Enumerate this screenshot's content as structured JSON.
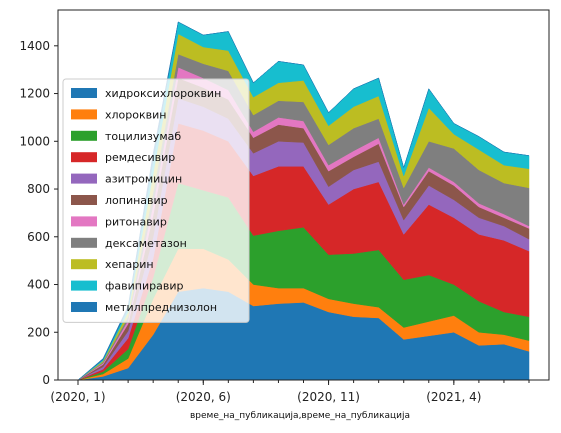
{
  "chart_data": {
    "type": "area",
    "stacked": true,
    "xlabel": "време_на_публикација,време_на_публикација",
    "ylabel": "",
    "ylim": [
      0,
      1550
    ],
    "yticks": [
      0,
      200,
      400,
      600,
      800,
      1000,
      1200,
      1400
    ],
    "xticks": [
      {
        "label": "(2020, 1)",
        "index": 0
      },
      {
        "label": "(2020, 6)",
        "index": 5
      },
      {
        "label": "(2020, 11)",
        "index": 10
      },
      {
        "label": "(2021, 4)",
        "index": 15
      }
    ],
    "x": [
      "2020-01",
      "2020-02",
      "2020-03",
      "2020-04",
      "2020-05",
      "2020-06",
      "2020-07",
      "2020-08",
      "2020-09",
      "2020-10",
      "2020-11",
      "2020-12",
      "2021-01",
      "2021-02",
      "2021-03",
      "2021-04",
      "2021-05",
      "2021-06",
      "2021-07"
    ],
    "legend_position": "left",
    "grid": false,
    "series": [
      {
        "name": "хидроксихлороквин",
        "color": "#1f77b4",
        "values": [
          0,
          15,
          50,
          190,
          370,
          385,
          370,
          310,
          320,
          325,
          285,
          265,
          260,
          170,
          185,
          200,
          145,
          150,
          120
        ]
      },
      {
        "name": "хлороквин",
        "color": "#ff7f0e",
        "values": [
          0,
          10,
          40,
          150,
          180,
          165,
          135,
          90,
          65,
          60,
          55,
          55,
          45,
          50,
          60,
          70,
          55,
          40,
          45
        ]
      },
      {
        "name": "тоцилизумаб",
        "color": "#2ca02c",
        "values": [
          0,
          10,
          40,
          90,
          275,
          245,
          260,
          205,
          240,
          255,
          185,
          210,
          240,
          200,
          195,
          130,
          130,
          95,
          100
        ]
      },
      {
        "name": "ремдесивир",
        "color": "#d62728",
        "values": [
          0,
          10,
          45,
          80,
          250,
          250,
          235,
          250,
          270,
          255,
          210,
          270,
          285,
          190,
          295,
          280,
          280,
          300,
          275
        ]
      },
      {
        "name": "азитромицин",
        "color": "#9467bd",
        "values": [
          0,
          10,
          30,
          90,
          105,
          100,
          95,
          95,
          105,
          100,
          75,
          80,
          85,
          60,
          80,
          75,
          70,
          60,
          50
        ]
      },
      {
        "name": "лопинавир",
        "color": "#8c564b",
        "values": [
          0,
          10,
          30,
          90,
          85,
          80,
          80,
          65,
          70,
          60,
          65,
          55,
          75,
          55,
          60,
          60,
          45,
          35,
          45
        ]
      },
      {
        "name": "ритонавир",
        "color": "#e377c2",
        "values": [
          0,
          5,
          15,
          45,
          45,
          40,
          40,
          25,
          30,
          30,
          25,
          25,
          25,
          10,
          15,
          15,
          15,
          15,
          10
        ]
      },
      {
        "name": "дексаметазон",
        "color": "#7f7f7f",
        "values": [
          0,
          5,
          15,
          50,
          55,
          60,
          80,
          70,
          70,
          80,
          85,
          95,
          80,
          70,
          110,
          140,
          140,
          130,
          160
        ]
      },
      {
        "name": "хепарин",
        "color": "#bcbd22",
        "values": [
          0,
          5,
          20,
          80,
          85,
          70,
          85,
          75,
          75,
          90,
          80,
          90,
          95,
          50,
          140,
          60,
          85,
          75,
          80
        ]
      },
      {
        "name": "фавипиравир",
        "color": "#17becf",
        "values": [
          0,
          5,
          15,
          55,
          50,
          50,
          80,
          60,
          90,
          65,
          55,
          75,
          75,
          35,
          80,
          45,
          55,
          55,
          55
        ]
      },
      {
        "name": "метилпреднизолон",
        "color": "#1f77b4",
        "values": [
          0,
          5,
          10,
          30,
          0,
          0,
          0,
          0,
          0,
          0,
          0,
          0,
          0,
          0,
          0,
          0,
          0,
          0,
          0
        ]
      }
    ]
  }
}
